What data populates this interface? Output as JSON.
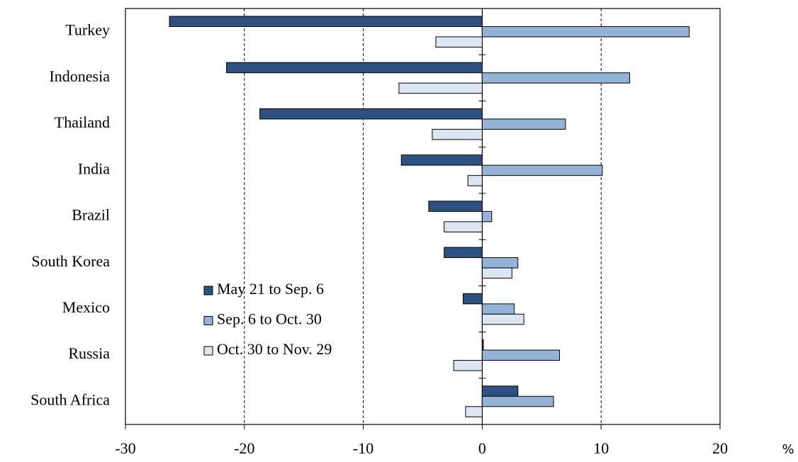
{
  "chart_data": {
    "type": "hbar",
    "categories": [
      "Turkey",
      "Indonesia",
      "Thailand",
      "India",
      "Brazil",
      "South Korea",
      "Mexico",
      "Russia",
      "South Africa"
    ],
    "series": [
      {
        "name": "May 21 to Sep. 6",
        "color": "#2f5181",
        "values": [
          -26.3,
          -21.5,
          -18.7,
          -6.8,
          -4.5,
          -3.2,
          -1.6,
          0.1,
          3.0
        ]
      },
      {
        "name": "Sep. 6 to Oct. 30",
        "color": "#95b3d7",
        "values": [
          17.4,
          12.4,
          7.0,
          10.1,
          0.8,
          3.0,
          2.7,
          6.5,
          6.0
        ]
      },
      {
        "name": "Oct. 30 to Nov. 29",
        "color": "#dce6f2",
        "values": [
          -3.9,
          -7.0,
          -4.2,
          -1.2,
          -3.2,
          2.5,
          3.5,
          -2.4,
          -1.4
        ]
      }
    ],
    "x_label": "%",
    "xlim": [
      -30,
      20
    ],
    "xticks": [
      -30,
      -20,
      -10,
      0,
      10,
      20
    ],
    "grid": true
  }
}
